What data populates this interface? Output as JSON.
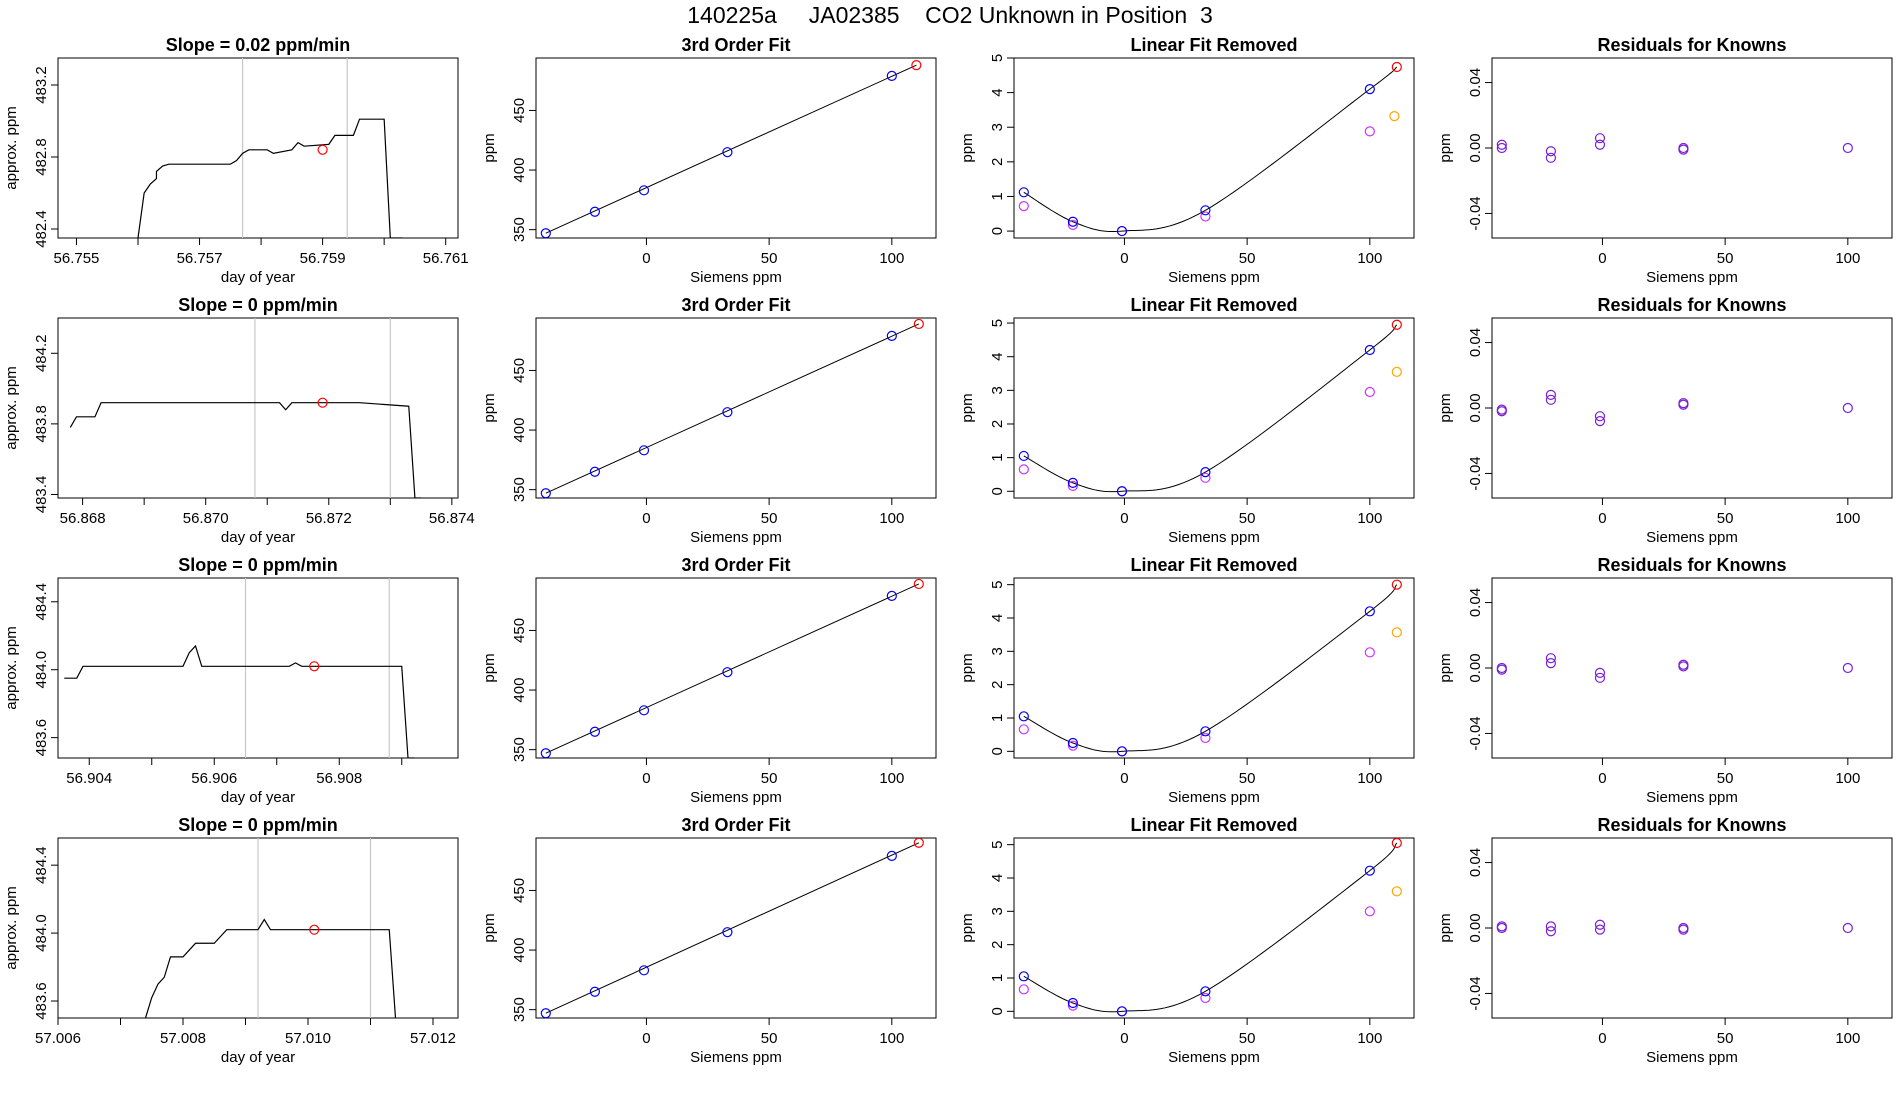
{
  "header": {
    "title": "140225a     JA02385    CO2 Unknown in Position  3"
  },
  "colors": {
    "known": "#0000ff",
    "unknown": "#ff0000",
    "raw_known": "#cc33ff",
    "raw_unknown": "#ffa500",
    "residual": "#7b1fd6",
    "gridline": "#c8c8c8",
    "trace": "#000000"
  },
  "chart_data": [
    {
      "type": "line",
      "title": "Slope =  0.02  ppm/min",
      "xlabel": "day of year",
      "ylabel": "approx. ppm",
      "xlim": [
        56.7547,
        56.7612
      ],
      "ylim": [
        482.35,
        483.35
      ],
      "xticks": [
        56.755,
        56.757,
        56.759,
        56.761
      ],
      "xtick_labels": [
        "56.755",
        "56.757",
        "56.759",
        "56.761"
      ],
      "xticks_minor": [
        56.756,
        56.758,
        56.76
      ],
      "yticks": [
        482.4,
        482.8,
        483.2
      ],
      "ytick_labels": [
        "482.4",
        "482.8",
        "483.2"
      ],
      "vlines": [
        56.7577,
        56.7594
      ],
      "series": {
        "x": [
          56.756,
          56.7561,
          56.7562,
          56.7563,
          56.7563,
          56.7564,
          56.7565,
          56.7566,
          56.757,
          56.7575,
          56.7576,
          56.7577,
          56.7578,
          56.7581,
          56.7582,
          56.7585,
          56.7586,
          56.7587,
          56.7591,
          56.7592,
          56.7595,
          56.7596,
          56.76,
          56.7601,
          56.7603
        ],
        "y": [
          482.35,
          482.6,
          482.65,
          482.68,
          482.72,
          482.75,
          482.76,
          482.76,
          482.76,
          482.76,
          482.78,
          482.82,
          482.84,
          482.84,
          482.82,
          482.84,
          482.88,
          482.86,
          482.87,
          482.92,
          482.92,
          483.01,
          483.01,
          482.35,
          482.35
        ]
      },
      "point": {
        "x": 56.759,
        "y": 482.84
      }
    },
    {
      "type": "line",
      "title": "Slope =  0  ppm/min",
      "xlabel": "day of year",
      "ylabel": "approx. ppm",
      "xlim": [
        56.8676,
        56.8741
      ],
      "ylim": [
        483.38,
        484.4
      ],
      "xticks": [
        56.868,
        56.87,
        56.872,
        56.874
      ],
      "xtick_labels": [
        "56.868",
        "56.870",
        "56.872",
        "56.874"
      ],
      "xticks_minor": [
        56.869,
        56.871,
        56.873
      ],
      "yticks": [
        483.4,
        483.8,
        484.2
      ],
      "ytick_labels": [
        "483.4",
        "483.8",
        "484.2"
      ],
      "vlines": [
        56.8708,
        56.873
      ],
      "series": {
        "x": [
          56.8678,
          56.8679,
          56.868,
          56.8682,
          56.8683,
          56.869,
          56.87,
          56.8712,
          56.8713,
          56.8714,
          56.8716,
          56.8725,
          56.8733,
          56.8734,
          56.8735
        ],
        "y": [
          483.78,
          483.84,
          483.84,
          483.84,
          483.92,
          483.92,
          483.92,
          483.92,
          483.88,
          483.92,
          483.92,
          483.92,
          483.9,
          483.38,
          483.38
        ]
      },
      "point": {
        "x": 56.8719,
        "y": 483.92
      }
    },
    {
      "type": "line",
      "title": "Slope =  0  ppm/min",
      "xlabel": "day of year",
      "ylabel": "approx. ppm",
      "xlim": [
        56.9035,
        56.9099
      ],
      "ylim": [
        483.48,
        484.54
      ],
      "xticks": [
        56.904,
        56.906,
        56.908
      ],
      "xtick_labels": [
        "56.904",
        "56.906",
        "56.908"
      ],
      "xticks_minor": [
        56.905,
        56.907,
        56.909
      ],
      "yticks": [
        483.6,
        484.0,
        484.4
      ],
      "ytick_labels": [
        "483.6",
        "484.0",
        "484.4"
      ],
      "vlines": [
        56.9065,
        56.9088
      ],
      "series": {
        "x": [
          56.9036,
          56.9038,
          56.9039,
          56.904,
          56.9055,
          56.9056,
          56.9057,
          56.9058,
          56.9072,
          56.9073,
          56.9074,
          56.909,
          56.9091,
          56.9092
        ],
        "y": [
          483.95,
          483.95,
          484.02,
          484.02,
          484.02,
          484.1,
          484.14,
          484.02,
          484.02,
          484.04,
          484.02,
          484.02,
          483.48,
          483.48
        ]
      },
      "point": {
        "x": 56.9076,
        "y": 484.02
      }
    },
    {
      "type": "line",
      "title": "Slope =  0  ppm/min",
      "xlabel": "day of year",
      "ylabel": "approx. ppm",
      "xlim": [
        57.006,
        57.0124
      ],
      "ylim": [
        483.5,
        484.56
      ],
      "xticks": [
        57.006,
        57.008,
        57.01,
        57.012
      ],
      "xtick_labels": [
        "57.006",
        "57.008",
        "57.010",
        "57.012"
      ],
      "xticks_minor": [
        57.007,
        57.009,
        57.011
      ],
      "yticks": [
        483.6,
        484.0,
        484.4
      ],
      "ytick_labels": [
        "483.6",
        "484.0",
        "484.4"
      ],
      "vlines": [
        57.0092,
        57.011
      ],
      "series": {
        "x": [
          57.0074,
          57.0075,
          57.0076,
          57.0077,
          57.0078,
          57.008,
          57.0082,
          57.0083,
          57.0085,
          57.0086,
          57.0087,
          57.0088,
          57.0092,
          57.0093,
          57.0094,
          57.01,
          57.0113,
          57.0114
        ],
        "y": [
          483.5,
          483.62,
          483.7,
          483.74,
          483.86,
          483.86,
          483.94,
          483.94,
          483.94,
          483.98,
          484.02,
          484.02,
          484.02,
          484.08,
          484.02,
          484.02,
          484.02,
          483.5
        ]
      },
      "point": {
        "x": 57.0101,
        "y": 484.02
      }
    },
    {
      "type": "line",
      "title": "3rd Order Fit",
      "xlabel": "Siemens ppm",
      "ylabel": "ppm",
      "xlim": [
        -45,
        118
      ],
      "ylim": [
        343,
        494
      ],
      "xticks": [
        0,
        50,
        100
      ],
      "xtick_labels": [
        "0",
        "50",
        "100"
      ],
      "yticks": [
        350,
        400,
        450
      ],
      "ytick_labels": [
        "350",
        "400",
        "450"
      ],
      "fit_line": {
        "x": [
          -41,
          110
        ],
        "y": [
          347,
          488
        ]
      },
      "knowns": {
        "x": [
          -41,
          -21,
          -1,
          33,
          100
        ],
        "y": [
          347,
          365,
          383,
          415,
          479
        ]
      },
      "unknown": {
        "x": [
          110
        ],
        "y": [
          488
        ]
      }
    },
    {
      "type": "line",
      "title": "3rd Order Fit",
      "xlabel": "Siemens ppm",
      "ylabel": "ppm",
      "xlim": [
        -45,
        118
      ],
      "ylim": [
        343,
        494
      ],
      "xticks": [
        0,
        50,
        100
      ],
      "xtick_labels": [
        "0",
        "50",
        "100"
      ],
      "yticks": [
        350,
        400,
        450
      ],
      "ytick_labels": [
        "350",
        "400",
        "450"
      ],
      "fit_line": {
        "x": [
          -41,
          111
        ],
        "y": [
          347,
          489
        ]
      },
      "knowns": {
        "x": [
          -41,
          -21,
          -1,
          33,
          100
        ],
        "y": [
          347,
          365,
          383,
          415,
          479
        ]
      },
      "unknown": {
        "x": [
          111
        ],
        "y": [
          489
        ]
      }
    },
    {
      "type": "line",
      "title": "3rd Order Fit",
      "xlabel": "Siemens ppm",
      "ylabel": "ppm",
      "xlim": [
        -45,
        118
      ],
      "ylim": [
        343,
        494
      ],
      "xticks": [
        0,
        50,
        100
      ],
      "xtick_labels": [
        "0",
        "50",
        "100"
      ],
      "yticks": [
        350,
        400,
        450
      ],
      "ytick_labels": [
        "350",
        "400",
        "450"
      ],
      "fit_line": {
        "x": [
          -41,
          111
        ],
        "y": [
          347,
          489
        ]
      },
      "knowns": {
        "x": [
          -41,
          -21,
          -1,
          33,
          100
        ],
        "y": [
          347,
          365,
          383,
          415,
          479
        ]
      },
      "unknown": {
        "x": [
          111
        ],
        "y": [
          489
        ]
      }
    },
    {
      "type": "line",
      "title": "3rd Order Fit",
      "xlabel": "Siemens ppm",
      "ylabel": "ppm",
      "xlim": [
        -45,
        118
      ],
      "ylim": [
        343,
        494
      ],
      "xticks": [
        0,
        50,
        100
      ],
      "xtick_labels": [
        "0",
        "50",
        "100"
      ],
      "yticks": [
        350,
        400,
        450
      ],
      "ytick_labels": [
        "350",
        "400",
        "450"
      ],
      "fit_line": {
        "x": [
          -41,
          111
        ],
        "y": [
          347,
          490
        ]
      },
      "knowns": {
        "x": [
          -41,
          -21,
          -1,
          33,
          100
        ],
        "y": [
          347,
          365,
          383,
          415,
          479
        ]
      },
      "unknown": {
        "x": [
          111
        ],
        "y": [
          490
        ]
      }
    },
    {
      "type": "line",
      "title": "Linear Fit Removed",
      "xlabel": "Siemens ppm",
      "ylabel": "ppm",
      "xlim": [
        -45,
        118
      ],
      "ylim": [
        -0.2,
        5.0
      ],
      "xticks": [
        0,
        50,
        100
      ],
      "xtick_labels": [
        "0",
        "50",
        "100"
      ],
      "yticks": [
        0,
        1,
        2,
        3,
        4,
        5
      ],
      "ytick_labels": [
        "0",
        "1",
        "2",
        "3",
        "4",
        "5"
      ],
      "curve": {
        "x": [
          -41,
          -21,
          -1,
          33,
          100,
          111
        ],
        "y": [
          1.12,
          0.27,
          0.0,
          0.6,
          4.1,
          4.74
        ]
      },
      "knowns": {
        "x": [
          -41,
          -21,
          -1,
          33,
          100
        ],
        "y": [
          1.12,
          0.27,
          0.0,
          0.6,
          4.1
        ]
      },
      "unknown": {
        "x": [
          111
        ],
        "y": [
          4.74
        ]
      },
      "raw_knowns": {
        "x": [
          -41,
          -21,
          -1,
          33,
          100
        ],
        "y": [
          0.72,
          0.18,
          0.0,
          0.42,
          2.88
        ]
      },
      "raw_unknown": {
        "x": [
          110
        ],
        "y": [
          3.32
        ]
      }
    },
    {
      "type": "line",
      "title": "Linear Fit Removed",
      "xlabel": "Siemens ppm",
      "ylabel": "ppm",
      "xlim": [
        -45,
        118
      ],
      "ylim": [
        -0.2,
        5.15
      ],
      "xticks": [
        0,
        50,
        100
      ],
      "xtick_labels": [
        "0",
        "50",
        "100"
      ],
      "yticks": [
        0,
        1,
        2,
        3,
        4,
        5
      ],
      "ytick_labels": [
        "0",
        "1",
        "2",
        "3",
        "4",
        "5"
      ],
      "curve": {
        "x": [
          -41,
          -21,
          -1,
          33,
          100,
          111
        ],
        "y": [
          1.05,
          0.25,
          0.0,
          0.57,
          4.2,
          4.95
        ]
      },
      "knowns": {
        "x": [
          -41,
          -21,
          -1,
          33,
          100
        ],
        "y": [
          1.05,
          0.25,
          0.0,
          0.57,
          4.2
        ]
      },
      "unknown": {
        "x": [
          111
        ],
        "y": [
          4.95
        ]
      },
      "raw_knowns": {
        "x": [
          -41,
          -21,
          -1,
          33,
          100
        ],
        "y": [
          0.65,
          0.16,
          0.0,
          0.4,
          2.95
        ]
      },
      "raw_unknown": {
        "x": [
          111
        ],
        "y": [
          3.55
        ]
      }
    },
    {
      "type": "line",
      "title": "Linear Fit Removed",
      "xlabel": "Siemens ppm",
      "ylabel": "ppm",
      "xlim": [
        -45,
        118
      ],
      "ylim": [
        -0.2,
        5.2
      ],
      "xticks": [
        0,
        50,
        100
      ],
      "xtick_labels": [
        "0",
        "50",
        "100"
      ],
      "yticks": [
        0,
        1,
        2,
        3,
        4,
        5
      ],
      "ytick_labels": [
        "0",
        "1",
        "2",
        "3",
        "4",
        "5"
      ],
      "curve": {
        "x": [
          -41,
          -21,
          -1,
          33,
          100,
          111
        ],
        "y": [
          1.05,
          0.25,
          0.0,
          0.6,
          4.2,
          5.0
        ]
      },
      "knowns": {
        "x": [
          -41,
          -21,
          -1,
          33,
          100
        ],
        "y": [
          1.05,
          0.25,
          0.0,
          0.6,
          4.2
        ]
      },
      "unknown": {
        "x": [
          111
        ],
        "y": [
          5.0
        ]
      },
      "raw_knowns": {
        "x": [
          -41,
          -21,
          -1,
          33,
          100
        ],
        "y": [
          0.66,
          0.17,
          0.0,
          0.4,
          2.97
        ]
      },
      "raw_unknown": {
        "x": [
          111
        ],
        "y": [
          3.57
        ]
      }
    },
    {
      "type": "line",
      "title": "Linear Fit Removed",
      "xlabel": "Siemens ppm",
      "ylabel": "ppm",
      "xlim": [
        -45,
        118
      ],
      "ylim": [
        -0.2,
        5.2
      ],
      "xticks": [
        0,
        50,
        100
      ],
      "xtick_labels": [
        "0",
        "50",
        "100"
      ],
      "yticks": [
        0,
        1,
        2,
        3,
        4,
        5
      ],
      "ytick_labels": [
        "0",
        "1",
        "2",
        "3",
        "4",
        "5"
      ],
      "curve": {
        "x": [
          -41,
          -21,
          -1,
          33,
          100,
          111
        ],
        "y": [
          1.05,
          0.25,
          0.0,
          0.6,
          4.22,
          5.05
        ]
      },
      "knowns": {
        "x": [
          -41,
          -21,
          -1,
          33,
          100
        ],
        "y": [
          1.05,
          0.25,
          0.0,
          0.6,
          4.22
        ]
      },
      "unknown": {
        "x": [
          111
        ],
        "y": [
          5.05
        ]
      },
      "raw_knowns": {
        "x": [
          -41,
          -21,
          -1,
          33,
          100
        ],
        "y": [
          0.66,
          0.17,
          0.0,
          0.4,
          3.0
        ]
      },
      "raw_unknown": {
        "x": [
          111
        ],
        "y": [
          3.6
        ]
      }
    },
    {
      "type": "scatter",
      "title": "Residuals for Knowns",
      "xlabel": "Siemens ppm",
      "ylabel": "ppm",
      "xlim": [
        -45,
        118
      ],
      "ylim": [
        -0.055,
        0.055
      ],
      "xticks": [
        0,
        50,
        100
      ],
      "xtick_labels": [
        "0",
        "50",
        "100"
      ],
      "yticks": [
        -0.04,
        0.0,
        0.04
      ],
      "ytick_labels": [
        "-0.04",
        "0.00",
        "0.04"
      ],
      "points": {
        "x": [
          -41,
          -41,
          -21,
          -21,
          -1,
          -1,
          33,
          33,
          100
        ],
        "y": [
          0.002,
          0.0,
          -0.002,
          -0.006,
          0.006,
          0.002,
          0.0,
          -0.001,
          0.0
        ]
      }
    },
    {
      "type": "scatter",
      "title": "Residuals for Knowns",
      "xlabel": "Siemens ppm",
      "ylabel": "ppm",
      "xlim": [
        -45,
        118
      ],
      "ylim": [
        -0.055,
        0.055
      ],
      "xticks": [
        0,
        50,
        100
      ],
      "xtick_labels": [
        "0",
        "50",
        "100"
      ],
      "yticks": [
        -0.04,
        0.0,
        0.04
      ],
      "ytick_labels": [
        "-0.04",
        "0.00",
        "0.04"
      ],
      "points": {
        "x": [
          -41,
          -41,
          -21,
          -21,
          -1,
          -1,
          33,
          33,
          100
        ],
        "y": [
          -0.001,
          -0.002,
          0.008,
          0.005,
          -0.005,
          -0.008,
          0.003,
          0.002,
          0.0
        ]
      }
    },
    {
      "type": "scatter",
      "title": "Residuals for Knowns",
      "xlabel": "Siemens ppm",
      "ylabel": "ppm",
      "xlim": [
        -45,
        118
      ],
      "ylim": [
        -0.055,
        0.055
      ],
      "xticks": [
        0,
        50,
        100
      ],
      "xtick_labels": [
        "0",
        "50",
        "100"
      ],
      "yticks": [
        -0.04,
        0.0,
        0.04
      ],
      "ytick_labels": [
        "-0.04",
        "0.00",
        "0.04"
      ],
      "points": {
        "x": [
          -41,
          -41,
          -21,
          -21,
          -1,
          -1,
          33,
          33,
          100
        ],
        "y": [
          0.0,
          -0.001,
          0.006,
          0.003,
          -0.003,
          -0.006,
          0.002,
          0.001,
          0.0
        ]
      }
    },
    {
      "type": "scatter",
      "title": "Residuals for Knowns",
      "xlabel": "Siemens ppm",
      "ylabel": "ppm",
      "xlim": [
        -45,
        118
      ],
      "ylim": [
        -0.055,
        0.055
      ],
      "xticks": [
        0,
        50,
        100
      ],
      "xtick_labels": [
        "0",
        "50",
        "100"
      ],
      "yticks": [
        -0.04,
        0.0,
        0.04
      ],
      "ytick_labels": [
        "-0.04",
        "0.00",
        "0.04"
      ],
      "points": {
        "x": [
          -41,
          -41,
          -21,
          -21,
          -1,
          -1,
          33,
          33,
          100
        ],
        "y": [
          0.001,
          0.0,
          0.001,
          -0.002,
          0.002,
          -0.001,
          0.0,
          -0.001,
          0.0
        ]
      }
    }
  ]
}
